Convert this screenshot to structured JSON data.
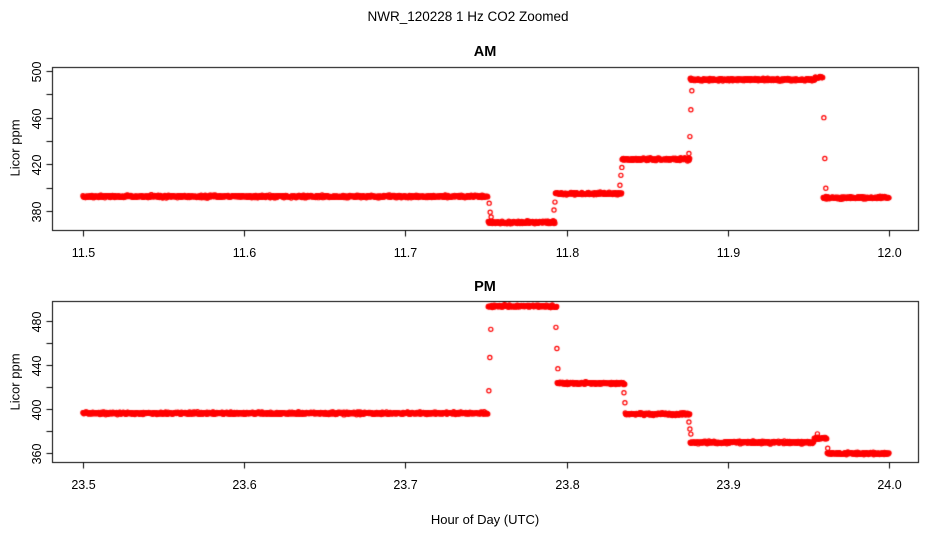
{
  "page": {
    "title": "NWR_120228  1 Hz CO2 Zoomed",
    "xlabel": "Hour of Day (UTC)",
    "background_color": "#ffffff",
    "axis_color": "#000000"
  },
  "chart_data": [
    {
      "type": "scatter",
      "title": "AM",
      "ylabel": "Licor ppm",
      "xlabel": "",
      "units": "ppm",
      "marker": {
        "shape": "open-circle",
        "color": "#FF0000",
        "radius_px": 2.1,
        "sample_rate_hz": 1
      },
      "xlim": [
        11.4808,
        12.018
      ],
      "ylim": [
        363.8,
        503.4
      ],
      "x_ticks": [
        [
          11.5,
          "11.5"
        ],
        [
          11.6,
          "11.6"
        ],
        [
          11.7,
          "11.7"
        ],
        [
          11.8,
          "11.8"
        ],
        [
          11.9,
          "11.9"
        ],
        [
          12.0,
          "12.0"
        ]
      ],
      "y_ticks": [
        [
          380,
          "380"
        ],
        [
          400,
          ""
        ],
        [
          420,
          "420"
        ],
        [
          440,
          ""
        ],
        [
          460,
          "460"
        ],
        [
          480,
          ""
        ],
        [
          500,
          "500"
        ]
      ],
      "grid": false,
      "segments": [
        [
          11.5,
          11.7512,
          392.5
        ],
        [
          11.7512,
          11.7928,
          370.3
        ],
        [
          11.7928,
          11.8343,
          395.0
        ],
        [
          11.8343,
          11.8765,
          424.3
        ],
        [
          11.8765,
          11.954,
          492.5
        ],
        [
          11.954,
          11.959,
          494.3
        ],
        [
          11.959,
          12.0,
          391.5
        ]
      ],
      "transition_points": [
        [
          11.752,
          386.8
        ],
        [
          11.7526,
          379.1
        ],
        [
          11.7532,
          374.9
        ],
        [
          11.7922,
          380.9
        ],
        [
          11.7928,
          387.7
        ],
        [
          11.8331,
          402.1
        ],
        [
          11.8337,
          410.6
        ],
        [
          11.8343,
          417.4
        ],
        [
          11.8759,
          429.4
        ],
        [
          11.8765,
          443.8
        ],
        [
          11.8771,
          466.8
        ],
        [
          11.8777,
          483.0
        ],
        [
          11.9596,
          460.0
        ],
        [
          11.9602,
          425.0
        ],
        [
          11.9608,
          399.6
        ]
      ],
      "noise_ppm": 1.1
    },
    {
      "type": "scatter",
      "title": "PM",
      "ylabel": "Licor ppm",
      "xlabel": "",
      "units": "ppm",
      "marker": {
        "shape": "open-circle",
        "color": "#FF0000",
        "radius_px": 2.1,
        "sample_rate_hz": 1
      },
      "xlim": [
        23.4808,
        24.018
      ],
      "ylim": [
        352.1,
        498.0
      ],
      "x_ticks": [
        [
          23.5,
          "23.5"
        ],
        [
          23.6,
          "23.6"
        ],
        [
          23.7,
          "23.7"
        ],
        [
          23.8,
          "23.8"
        ],
        [
          23.9,
          "23.9"
        ],
        [
          24.0,
          "24.0"
        ]
      ],
      "y_ticks": [
        [
          360,
          "360"
        ],
        [
          380,
          ""
        ],
        [
          400,
          "400"
        ],
        [
          420,
          ""
        ],
        [
          440,
          "440"
        ],
        [
          460,
          ""
        ],
        [
          480,
          "480"
        ]
      ],
      "grid": false,
      "segments": [
        [
          23.5,
          23.7512,
          396.3
        ],
        [
          23.7512,
          23.794,
          493.2
        ],
        [
          23.794,
          23.8362,
          423.4
        ],
        [
          23.8362,
          23.8765,
          395.5
        ],
        [
          23.8765,
          23.9534,
          369.8
        ],
        [
          23.9534,
          23.9615,
          373.5
        ],
        [
          23.9615,
          24.0,
          359.8
        ]
      ],
      "transition_points": [
        [
          23.7518,
          416.7
        ],
        [
          23.7524,
          446.8
        ],
        [
          23.753,
          472.3
        ],
        [
          23.7934,
          474.1
        ],
        [
          23.794,
          455.0
        ],
        [
          23.7946,
          436.7
        ],
        [
          23.8356,
          414.9
        ],
        [
          23.8362,
          405.8
        ],
        [
          23.8759,
          388.4
        ],
        [
          23.8765,
          382.0
        ],
        [
          23.8771,
          377.4
        ],
        [
          23.9556,
          377.6
        ],
        [
          23.962,
          364.5
        ]
      ],
      "noise_ppm": 1.1
    }
  ]
}
